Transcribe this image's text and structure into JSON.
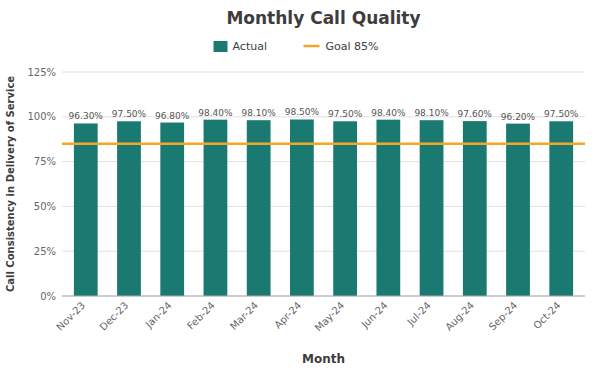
{
  "chart_data": {
    "type": "bar",
    "title": "Monthly Call Quality",
    "xlabel": "Month",
    "ylabel": "Call Consistency in Delivery of Service",
    "categories": [
      "Nov-23",
      "Dec-23",
      "Jan-24",
      "Feb-24",
      "Mar-24",
      "Apr-24",
      "May-24",
      "Jun-24",
      "Jul-24",
      "Aug-24",
      "Sep-24",
      "Oct-24"
    ],
    "series": [
      {
        "name": "Actual",
        "color": "#1a7a72",
        "values": [
          0.963,
          0.975,
          0.968,
          0.984,
          0.981,
          0.985,
          0.975,
          0.984,
          0.981,
          0.976,
          0.962,
          0.975
        ],
        "value_labels": [
          "96.30%",
          "97.50%",
          "96.80%",
          "98.40%",
          "98.10%",
          "98.50%",
          "97.50%",
          "98.40%",
          "98.10%",
          "97.60%",
          "96.20%",
          "97.50%"
        ]
      }
    ],
    "goal": {
      "name": "Goal 85%",
      "value": 0.85,
      "color": "#f5a623"
    },
    "ylim": [
      0,
      1.25
    ],
    "yticks": [
      {
        "value": 0,
        "label": "0%"
      },
      {
        "value": 0.25,
        "label": "25%"
      },
      {
        "value": 0.5,
        "label": "50%"
      },
      {
        "value": 0.75,
        "label": "75%"
      },
      {
        "value": 1.0,
        "label": "100%"
      },
      {
        "value": 1.25,
        "label": "125%"
      }
    ],
    "grid": true,
    "legend": "top",
    "data_labels": true
  }
}
